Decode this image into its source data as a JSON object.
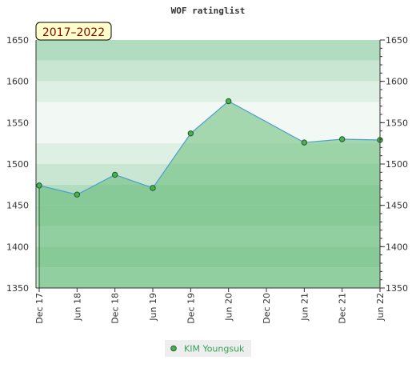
{
  "chart_data": {
    "type": "area",
    "title": "WOF ratinglist",
    "period_label": "2017–2022",
    "xlabel": "",
    "ylabel": "",
    "x_ticks": [
      "Dec 17",
      "Jun 18",
      "Dec 18",
      "Jun 19",
      "Dec 19",
      "Jun 20",
      "Dec 20",
      "Jun 21",
      "Dec 21",
      "Jun 22"
    ],
    "y_ticks": [
      1350,
      1400,
      1450,
      1500,
      1550,
      1600,
      1650
    ],
    "ylim": [
      1350,
      1650
    ],
    "y_axis_sides": "left and right",
    "grid": false,
    "legend_placement": "bottom-center",
    "series": [
      {
        "name": "KIM Youngsuk",
        "x": [
          "Dec 17",
          "Jun 18",
          "Dec 18",
          "Jun 19",
          "Dec 19",
          "Jun 20",
          "Jun 21",
          "Dec 21",
          "Jun 22"
        ],
        "values": [
          1474,
          1463,
          1487,
          1471,
          1537,
          1576,
          1526,
          1530,
          1529
        ]
      }
    ],
    "colors": {
      "line": "#4a9fd0",
      "fill": "#66bb77",
      "marker": "#4caf50",
      "marker_stroke": "#1e5a2a",
      "legend_text": "#33a35a",
      "period_label_bg": "#ffffcc",
      "period_label_text": "#8b0000",
      "band_dark": "#b2dcbf",
      "band_mid": "#c8e6d2",
      "band_light": "#deefe3",
      "band_lightest": "#f2f8f4"
    }
  }
}
